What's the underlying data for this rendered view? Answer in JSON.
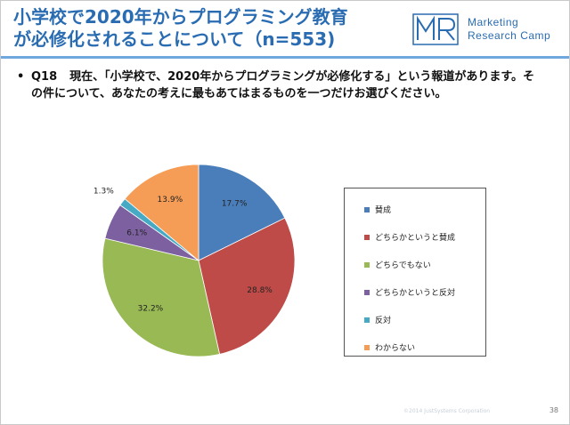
{
  "slide": {
    "title_lines": [
      "小学校で2020年からプログラミング教育",
      "が必修化されることについて（n=553)"
    ],
    "logo": {
      "mark_text": "MR",
      "line1": "Marketing",
      "line2": "Research Camp"
    },
    "question": {
      "bullet": "•",
      "label": "Q18",
      "text": "現在、「小学校で、2020年からプログラミングが必修化する」という報道があります。その件について、あなたの考えに最もあてはまるものを一つだけお選びください。"
    },
    "footer_copyright": "©2014 JustSystems Corporation",
    "page_number": "38"
  },
  "chart_data": {
    "type": "pie",
    "title": "",
    "start_angle_deg": 90,
    "direction": "clockwise",
    "slices": [
      {
        "label": "賛成",
        "value": 17.7,
        "value_label": "17.7%",
        "color": "#4a7ebb"
      },
      {
        "label": "どちらかというと賛成",
        "value": 28.8,
        "value_label": "28.8%",
        "color": "#be4b48"
      },
      {
        "label": "どちらでもない",
        "value": 32.2,
        "value_label": "32.2%",
        "color": "#98b954"
      },
      {
        "label": "どちらかというと反対",
        "value": 6.1,
        "value_label": "6.1%",
        "color": "#7d60a0"
      },
      {
        "label": "反対",
        "value": 1.3,
        "value_label": "1.3%",
        "color": "#46aac5"
      },
      {
        "label": "わからない",
        "value": 13.9,
        "value_label": "13.9%",
        "color": "#f59d56"
      }
    ],
    "legend_position": "right"
  }
}
